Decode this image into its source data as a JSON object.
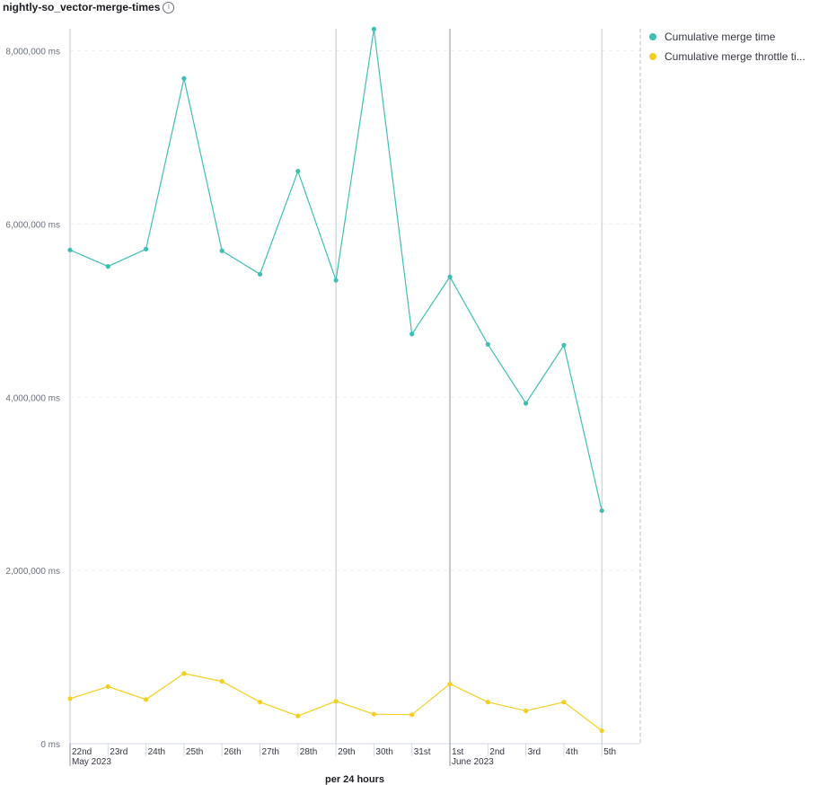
{
  "panel": {
    "title": "nightly-so_vector-merge-times",
    "info_icon": "info-icon"
  },
  "chart_data": {
    "type": "line",
    "x": [
      "2023-05-22",
      "2023-05-23",
      "2023-05-24",
      "2023-05-25",
      "2023-05-26",
      "2023-05-27",
      "2023-05-28",
      "2023-05-29",
      "2023-05-30",
      "2023-05-31",
      "2023-06-01",
      "2023-06-02",
      "2023-06-03",
      "2023-06-04",
      "2023-06-05"
    ],
    "x_tick_labels": [
      "22nd",
      "23rd",
      "24th",
      "25th",
      "26th",
      "27th",
      "28th",
      "29th",
      "30th",
      "31st",
      "1st",
      "2nd",
      "3rd",
      "4th",
      "5th"
    ],
    "x_group_labels": [
      {
        "at_index": 0,
        "label": "May 2023"
      },
      {
        "at_index": 10,
        "label": "June 2023"
      }
    ],
    "xlabel": "per 24 hours",
    "ylabel": "",
    "ylim": [
      0,
      8000000
    ],
    "y_ticks": [
      0,
      2000000,
      4000000,
      6000000,
      8000000
    ],
    "y_tick_labels": [
      "0 ms",
      "2,000,000 ms",
      "4,000,000 ms",
      "6,000,000 ms",
      "8,000,000 ms"
    ],
    "grid": true,
    "legend_position": "right",
    "series": [
      {
        "name": "Cumulative merge time",
        "color": "#3fbfb3",
        "values": [
          5700000,
          5510000,
          5710000,
          7680000,
          5690000,
          5420000,
          6610000,
          5350000,
          8250000,
          4730000,
          5390000,
          4610000,
          3930000,
          4600000,
          2690000
        ]
      },
      {
        "name": "Cumulative merge throttle time",
        "color": "#f4cf21",
        "values": [
          520000,
          660000,
          510000,
          810000,
          720000,
          480000,
          320000,
          490000,
          340000,
          335000,
          690000,
          480000,
          380000,
          480000,
          150000
        ]
      }
    ]
  },
  "legend": {
    "items": [
      {
        "label": "Cumulative merge time",
        "color": "#3fbfb3"
      },
      {
        "label": "Cumulative merge throttle ti...",
        "color": "#f4cf21"
      }
    ]
  }
}
